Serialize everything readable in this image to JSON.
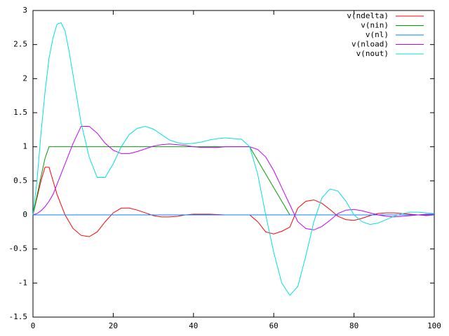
{
  "chart_data": {
    "type": "line",
    "x": [
      0,
      1,
      2,
      3,
      4,
      5,
      6,
      7,
      8,
      9,
      10,
      12,
      14,
      16,
      18,
      20,
      22,
      24,
      26,
      28,
      30,
      32,
      34,
      36,
      38,
      40,
      42,
      44,
      46,
      48,
      50,
      52,
      54,
      56,
      58,
      60,
      62,
      64,
      66,
      68,
      70,
      72,
      74,
      76,
      78,
      80,
      82,
      84,
      86,
      88,
      90,
      92,
      94,
      96,
      98,
      100
    ],
    "series": [
      {
        "name": "v(ndelta)",
        "color": "#ff0000",
        "values": [
          0,
          0.25,
          0.5,
          0.7,
          0.7,
          0.5,
          0.3,
          0.15,
          0,
          -0.1,
          -0.2,
          -0.3,
          -0.32,
          -0.25,
          -0.1,
          0.03,
          0.1,
          0.1,
          0.07,
          0.03,
          -0.01,
          -0.03,
          -0.03,
          -0.02,
          0,
          0.01,
          0.01,
          0.01,
          0.005,
          0,
          0,
          0,
          0,
          -0.1,
          -0.25,
          -0.28,
          -0.24,
          -0.18,
          0.1,
          0.2,
          0.22,
          0.17,
          0.08,
          -0.02,
          -0.07,
          -0.08,
          -0.05,
          -0.01,
          0.02,
          0.03,
          0.03,
          0.02,
          0.01,
          0,
          -0.01,
          0
        ]
      },
      {
        "name": "v(nin)",
        "color": "#00a000",
        "values": [
          0,
          0.28,
          0.56,
          0.83,
          1,
          1,
          1,
          1,
          1,
          1,
          1,
          1,
          1,
          1,
          1,
          1,
          1,
          1,
          1,
          1,
          1,
          1,
          1,
          1,
          1,
          1,
          1,
          1,
          1,
          1,
          1,
          1,
          1,
          0.8,
          0.6,
          0.4,
          0.2,
          0,
          0,
          0,
          0,
          0,
          0,
          0,
          0,
          0,
          0,
          0,
          0,
          0,
          0,
          0,
          0,
          0,
          0,
          0
        ]
      },
      {
        "name": "v(nl)",
        "color": "#0080ff",
        "values": [
          0,
          0,
          0,
          0,
          0,
          0,
          0,
          0,
          0,
          0,
          0,
          0,
          0,
          0,
          0,
          0,
          0,
          0,
          0,
          0,
          0,
          0,
          0,
          0,
          0,
          0,
          0,
          0,
          0,
          0,
          0,
          0,
          0,
          0,
          0,
          0,
          0,
          0,
          0,
          0,
          0,
          0,
          0,
          0,
          0,
          0,
          0,
          0,
          0,
          0,
          0,
          0,
          0,
          0,
          0,
          0
        ]
      },
      {
        "name": "v(nload)",
        "color": "#c000ff",
        "values": [
          0,
          0.02,
          0.06,
          0.12,
          0.2,
          0.3,
          0.45,
          0.6,
          0.75,
          0.9,
          1.05,
          1.3,
          1.3,
          1.2,
          1.05,
          0.95,
          0.9,
          0.9,
          0.93,
          0.97,
          1.01,
          1.03,
          1.04,
          1.03,
          1.02,
          1.0,
          0.99,
          0.99,
          0.99,
          1.0,
          1.0,
          1.0,
          1.0,
          0.96,
          0.85,
          0.65,
          0.4,
          0.15,
          -0.1,
          -0.2,
          -0.22,
          -0.17,
          -0.08,
          0.02,
          0.07,
          0.08,
          0.06,
          0.03,
          0,
          -0.02,
          -0.03,
          -0.02,
          -0.01,
          0,
          0.01,
          0.01
        ]
      },
      {
        "name": "v(nout)",
        "color": "#00e0e0",
        "values": [
          0,
          0.5,
          1.2,
          1.8,
          2.3,
          2.6,
          2.8,
          2.82,
          2.7,
          2.4,
          2.05,
          1.35,
          0.85,
          0.55,
          0.55,
          0.75,
          1.0,
          1.18,
          1.27,
          1.3,
          1.26,
          1.18,
          1.1,
          1.06,
          1.04,
          1.05,
          1.07,
          1.1,
          1.12,
          1.13,
          1.12,
          1.11,
          1.0,
          0.6,
          0.0,
          -0.55,
          -1.0,
          -1.18,
          -1.05,
          -0.6,
          -0.1,
          0.25,
          0.38,
          0.35,
          0.2,
          0.0,
          -0.1,
          -0.14,
          -0.12,
          -0.07,
          -0.02,
          0.02,
          0.04,
          0.04,
          0.03,
          0.02
        ]
      }
    ],
    "xlim": [
      0,
      100
    ],
    "xticks": [
      0,
      20,
      40,
      60,
      80,
      100
    ],
    "ylim": [
      -1.5,
      3
    ],
    "yticks": [
      -1.5,
      -1,
      -0.5,
      0,
      0.5,
      1,
      1.5,
      2,
      2.5,
      3
    ],
    "legend": "top-right"
  }
}
